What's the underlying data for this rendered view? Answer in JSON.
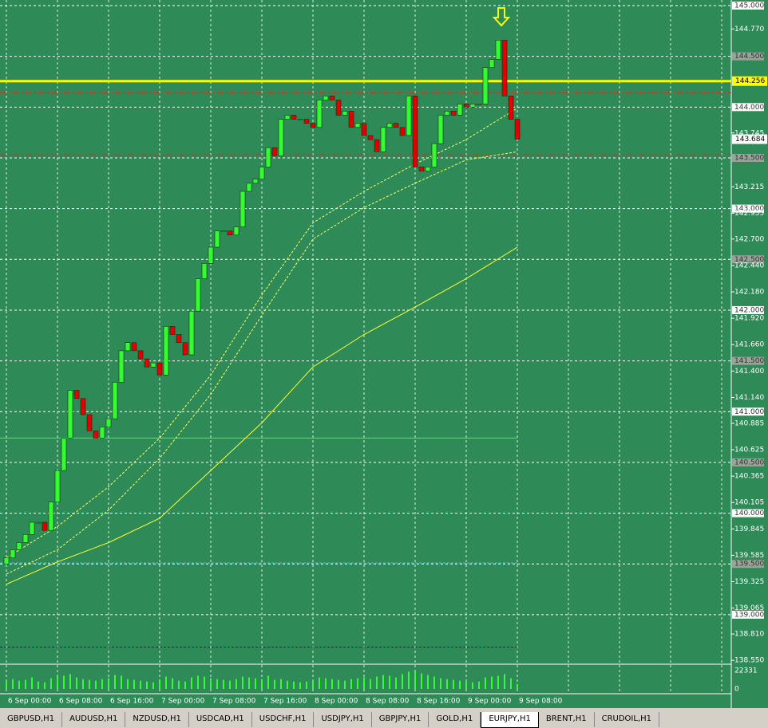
{
  "chart_data": {
    "type": "candlestick",
    "categories": [
      "6 Sep 00:00",
      null,
      null,
      null,
      null,
      null,
      null,
      null,
      "6 Sep 08:00",
      null,
      null,
      null,
      null,
      null,
      null,
      null,
      "6 Sep 16:00",
      null,
      null,
      null,
      null,
      null,
      null,
      null,
      "7 Sep 00:00",
      null,
      null,
      null,
      null,
      null,
      null,
      null,
      "7 Sep 08:00",
      null,
      null,
      null,
      null,
      null,
      null,
      null,
      "7 Sep 16:00",
      null,
      null,
      null,
      null,
      null,
      null,
      null,
      "8 Sep 00:00",
      null,
      null,
      null,
      null,
      null,
      null,
      null,
      "8 Sep 08:00",
      null,
      null,
      null,
      null,
      null,
      null,
      null,
      "8 Sep 16:00",
      null,
      null,
      null,
      null,
      null,
      null,
      null,
      "9 Sep 00:00",
      null,
      null,
      null,
      null,
      null,
      null,
      null,
      "9 Sep 08:00"
    ],
    "open": [
      139.5,
      139.56,
      139.64,
      139.71,
      139.79,
      139.91,
      139.91,
      139.83,
      140.11,
      140.42,
      140.74,
      141.21,
      141.13,
      140.97,
      140.81,
      140.74,
      140.85,
      140.93,
      141.29,
      141.6,
      141.68,
      141.6,
      141.52,
      141.44,
      141.48,
      141.36,
      141.84,
      141.76,
      141.68,
      141.56,
      141.99,
      142.31,
      142.46,
      142.62,
      142.78,
      142.78,
      142.74,
      142.82,
      143.17,
      143.25,
      143.29,
      143.41,
      143.6,
      143.52,
      143.88,
      143.92,
      143.88,
      143.88,
      143.84,
      143.8,
      144.07,
      144.11,
      144.07,
      143.92,
      143.96,
      143.8,
      143.84,
      143.72,
      143.68,
      143.56,
      143.8,
      143.84,
      143.8,
      143.72,
      144.11,
      143.41,
      143.37,
      143.41,
      143.64,
      143.92,
      143.96,
      143.92,
      144.03,
      144.0,
      144.03,
      144.03,
      144.39,
      144.47,
      144.66,
      144.11,
      143.88
    ],
    "close": [
      139.56,
      139.64,
      139.71,
      139.79,
      139.91,
      139.91,
      139.83,
      140.11,
      140.42,
      140.74,
      141.21,
      141.13,
      140.97,
      140.81,
      140.74,
      140.85,
      140.93,
      141.29,
      141.6,
      141.68,
      141.6,
      141.52,
      141.44,
      141.48,
      141.36,
      141.84,
      141.76,
      141.68,
      141.56,
      141.99,
      142.31,
      142.46,
      142.62,
      142.78,
      142.78,
      142.74,
      142.82,
      143.17,
      143.25,
      143.29,
      143.41,
      143.6,
      143.52,
      143.88,
      143.92,
      143.88,
      143.88,
      143.84,
      143.8,
      144.07,
      144.11,
      144.07,
      143.92,
      143.96,
      143.8,
      143.84,
      143.72,
      143.68,
      143.56,
      143.8,
      143.84,
      143.8,
      143.72,
      144.11,
      143.41,
      143.37,
      143.41,
      143.64,
      143.92,
      143.96,
      143.92,
      144.03,
      144.0,
      144.03,
      144.03,
      144.39,
      144.47,
      144.66,
      144.11,
      143.88,
      143.684
    ],
    "up_color": "#33ff33",
    "down_color": "#e00000",
    "ylim": [
      138.52,
      145.055
    ],
    "yticks": [
      {
        "value": 145,
        "label": "145.000"
      },
      {
        "value": 144.77,
        "label": "144.770"
      },
      {
        "value": 144.5,
        "label": "144.500"
      },
      {
        "value": 144,
        "label": "144.000"
      },
      {
        "value": 143.745,
        "label": "143.745"
      },
      {
        "value": 143.5,
        "label": "143.500"
      },
      {
        "value": 143.215,
        "label": "143.215"
      },
      {
        "value": 143,
        "label": "143.000"
      },
      {
        "value": 142.955,
        "label": "142.955"
      },
      {
        "value": 142.7,
        "label": "142.700"
      },
      {
        "value": 142.5,
        "label": "142.500"
      },
      {
        "value": 142.44,
        "label": "142.440"
      },
      {
        "value": 142.18,
        "label": "142.180"
      },
      {
        "value": 142,
        "label": "142.000"
      },
      {
        "value": 141.92,
        "label": "141.920"
      },
      {
        "value": 141.66,
        "label": "141.660"
      },
      {
        "value": 141.5,
        "label": "141.500"
      },
      {
        "value": 141.4,
        "label": "141.400"
      },
      {
        "value": 141.14,
        "label": "141.140"
      },
      {
        "value": 141,
        "label": "141.000"
      },
      {
        "value": 140.885,
        "label": "140.885"
      },
      {
        "value": 140.625,
        "label": "140.625"
      },
      {
        "value": 140.5,
        "label": "140.500"
      },
      {
        "value": 140.365,
        "label": "140.365"
      },
      {
        "value": 140.105,
        "label": "140.105"
      },
      {
        "value": 140,
        "label": "140.000"
      },
      {
        "value": 139.845,
        "label": "139.845"
      },
      {
        "value": 139.585,
        "label": "139.585"
      },
      {
        "value": 139.5,
        "label": "139.500"
      },
      {
        "value": 139.325,
        "label": "139.325"
      },
      {
        "value": 139.065,
        "label": "139.065"
      },
      {
        "value": 139,
        "label": "139.000"
      },
      {
        "value": 138.81,
        "label": "138.810"
      },
      {
        "value": 138.55,
        "label": "138.550"
      }
    ],
    "price_markers": [
      {
        "value": 144.256,
        "label": "144.256",
        "color": "#ffff00"
      },
      {
        "value": 143.684,
        "label": "143.684",
        "color": "#ffffff"
      }
    ],
    "levels": [
      {
        "value": 144.256,
        "color": "#ffff00"
      },
      {
        "value": 144.14,
        "color": "#c0392b"
      },
      {
        "value": 143.53,
        "color": "#c0392b"
      },
      {
        "value": 140.74,
        "color": "#33ff33"
      },
      {
        "value": 139.51,
        "color": "#40c0ff"
      },
      {
        "value": 138.68,
        "color": "#1a237e"
      }
    ],
    "series": [
      {
        "color": "#ffff33",
        "x": [
          0,
          8,
          16,
          24,
          32,
          40,
          48,
          56,
          64,
          72,
          80
        ],
        "values": [
          139.3,
          139.52,
          139.71,
          139.95,
          140.42,
          140.89,
          141.44,
          141.76,
          142.03,
          142.31,
          142.62
        ]
      },
      {
        "color": "#ffff66",
        "dashed": true,
        "x": [
          0,
          8,
          16,
          24,
          32,
          40,
          48,
          56,
          64,
          72,
          80
        ],
        "values": [
          139.56,
          139.87,
          140.26,
          140.74,
          141.36,
          142.15,
          142.86,
          143.17,
          143.44,
          143.68,
          143.99
        ]
      },
      {
        "color": "#ffff66",
        "dashed": true,
        "x": [
          0,
          8,
          16,
          24,
          32,
          40,
          48,
          56,
          64,
          72,
          80
        ],
        "values": [
          139.4,
          139.64,
          140.03,
          140.54,
          141.17,
          141.95,
          142.7,
          143.01,
          143.25,
          143.48,
          143.56
        ]
      }
    ],
    "volume": {
      "color": "#33ff33",
      "ylim": [
        0,
        22331
      ],
      "yticks": [
        22331,
        0
      ],
      "values": [
        9000,
        12000,
        10000,
        11000,
        14000,
        9000,
        8000,
        13000,
        15000,
        16000,
        18000,
        14000,
        12000,
        11000,
        10000,
        12000,
        13000,
        17000,
        16000,
        12000,
        11000,
        10000,
        9000,
        8000,
        11000,
        15000,
        13000,
        10000,
        9000,
        14000,
        16000,
        15000,
        13000,
        12000,
        11000,
        10000,
        12000,
        15000,
        14000,
        13000,
        12000,
        16000,
        11000,
        12000,
        10000,
        9000,
        8000,
        9000,
        10000,
        14000,
        13000,
        12000,
        11000,
        10000,
        12000,
        13000,
        14000,
        12000,
        15000,
        17000,
        16000,
        14000,
        18000,
        21000,
        22000,
        19000,
        17000,
        15000,
        13000,
        12000,
        11000,
        10000,
        9000,
        8000,
        9000,
        14000,
        15000,
        16000,
        18000,
        13000,
        6000
      ]
    }
  },
  "tabs": [
    "GBPUSD,H1",
    "AUDUSD,H1",
    "NZDUSD,H1",
    "USDCAD,H1",
    "USDCHF,H1",
    "USDJPY,H1",
    "GBPJPY,H1",
    "GOLD,H1",
    "EURJPY,H1",
    "BRENT,H1",
    "CRUDOIL,H1"
  ],
  "active_tab": 8
}
